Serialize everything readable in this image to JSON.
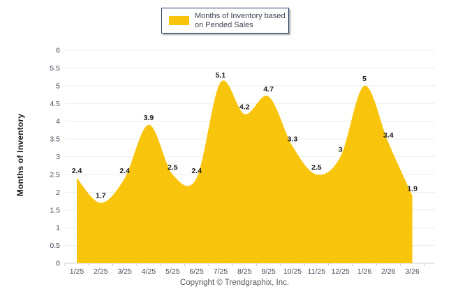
{
  "legend": {
    "label": "Months of Inventory based on Pended Sales"
  },
  "footer": {
    "text": "Copyright © Trendgraphix, Inc."
  },
  "chart_data": {
    "type": "area",
    "categories": [
      "1/25",
      "2/25",
      "3/25",
      "4/25",
      "5/25",
      "6/25",
      "7/25",
      "8/25",
      "9/25",
      "10/25",
      "11/25",
      "12/25",
      "1/26",
      "2/26",
      "3/26"
    ],
    "series": [
      {
        "name": "Months of Inventory based on Pended Sales",
        "values": [
          2.4,
          1.7,
          2.4,
          3.9,
          2.5,
          2.4,
          5.1,
          4.2,
          4.7,
          3.3,
          2.5,
          3,
          5,
          3.4,
          1.9
        ]
      }
    ],
    "title": "",
    "xlabel": "",
    "ylabel": "Months of Inventory",
    "ylim": [
      0,
      6
    ],
    "ytick_step": 0.5,
    "grid": true,
    "legend_position": "top-center",
    "data_labels": true,
    "smooth": true,
    "colors": {
      "area_fill": "#F9C50C",
      "grid_line": "#ECECEC",
      "axis_line": "#D3D3D3",
      "tick_mark": "#C9C9C9",
      "tick_label": "#44485A",
      "data_label": "#1A1A1A",
      "legend_border": "#1F3864",
      "legend_text": "#3F4254",
      "footer_text": "#55565A",
      "axis_title": "#1C1C1C"
    }
  }
}
